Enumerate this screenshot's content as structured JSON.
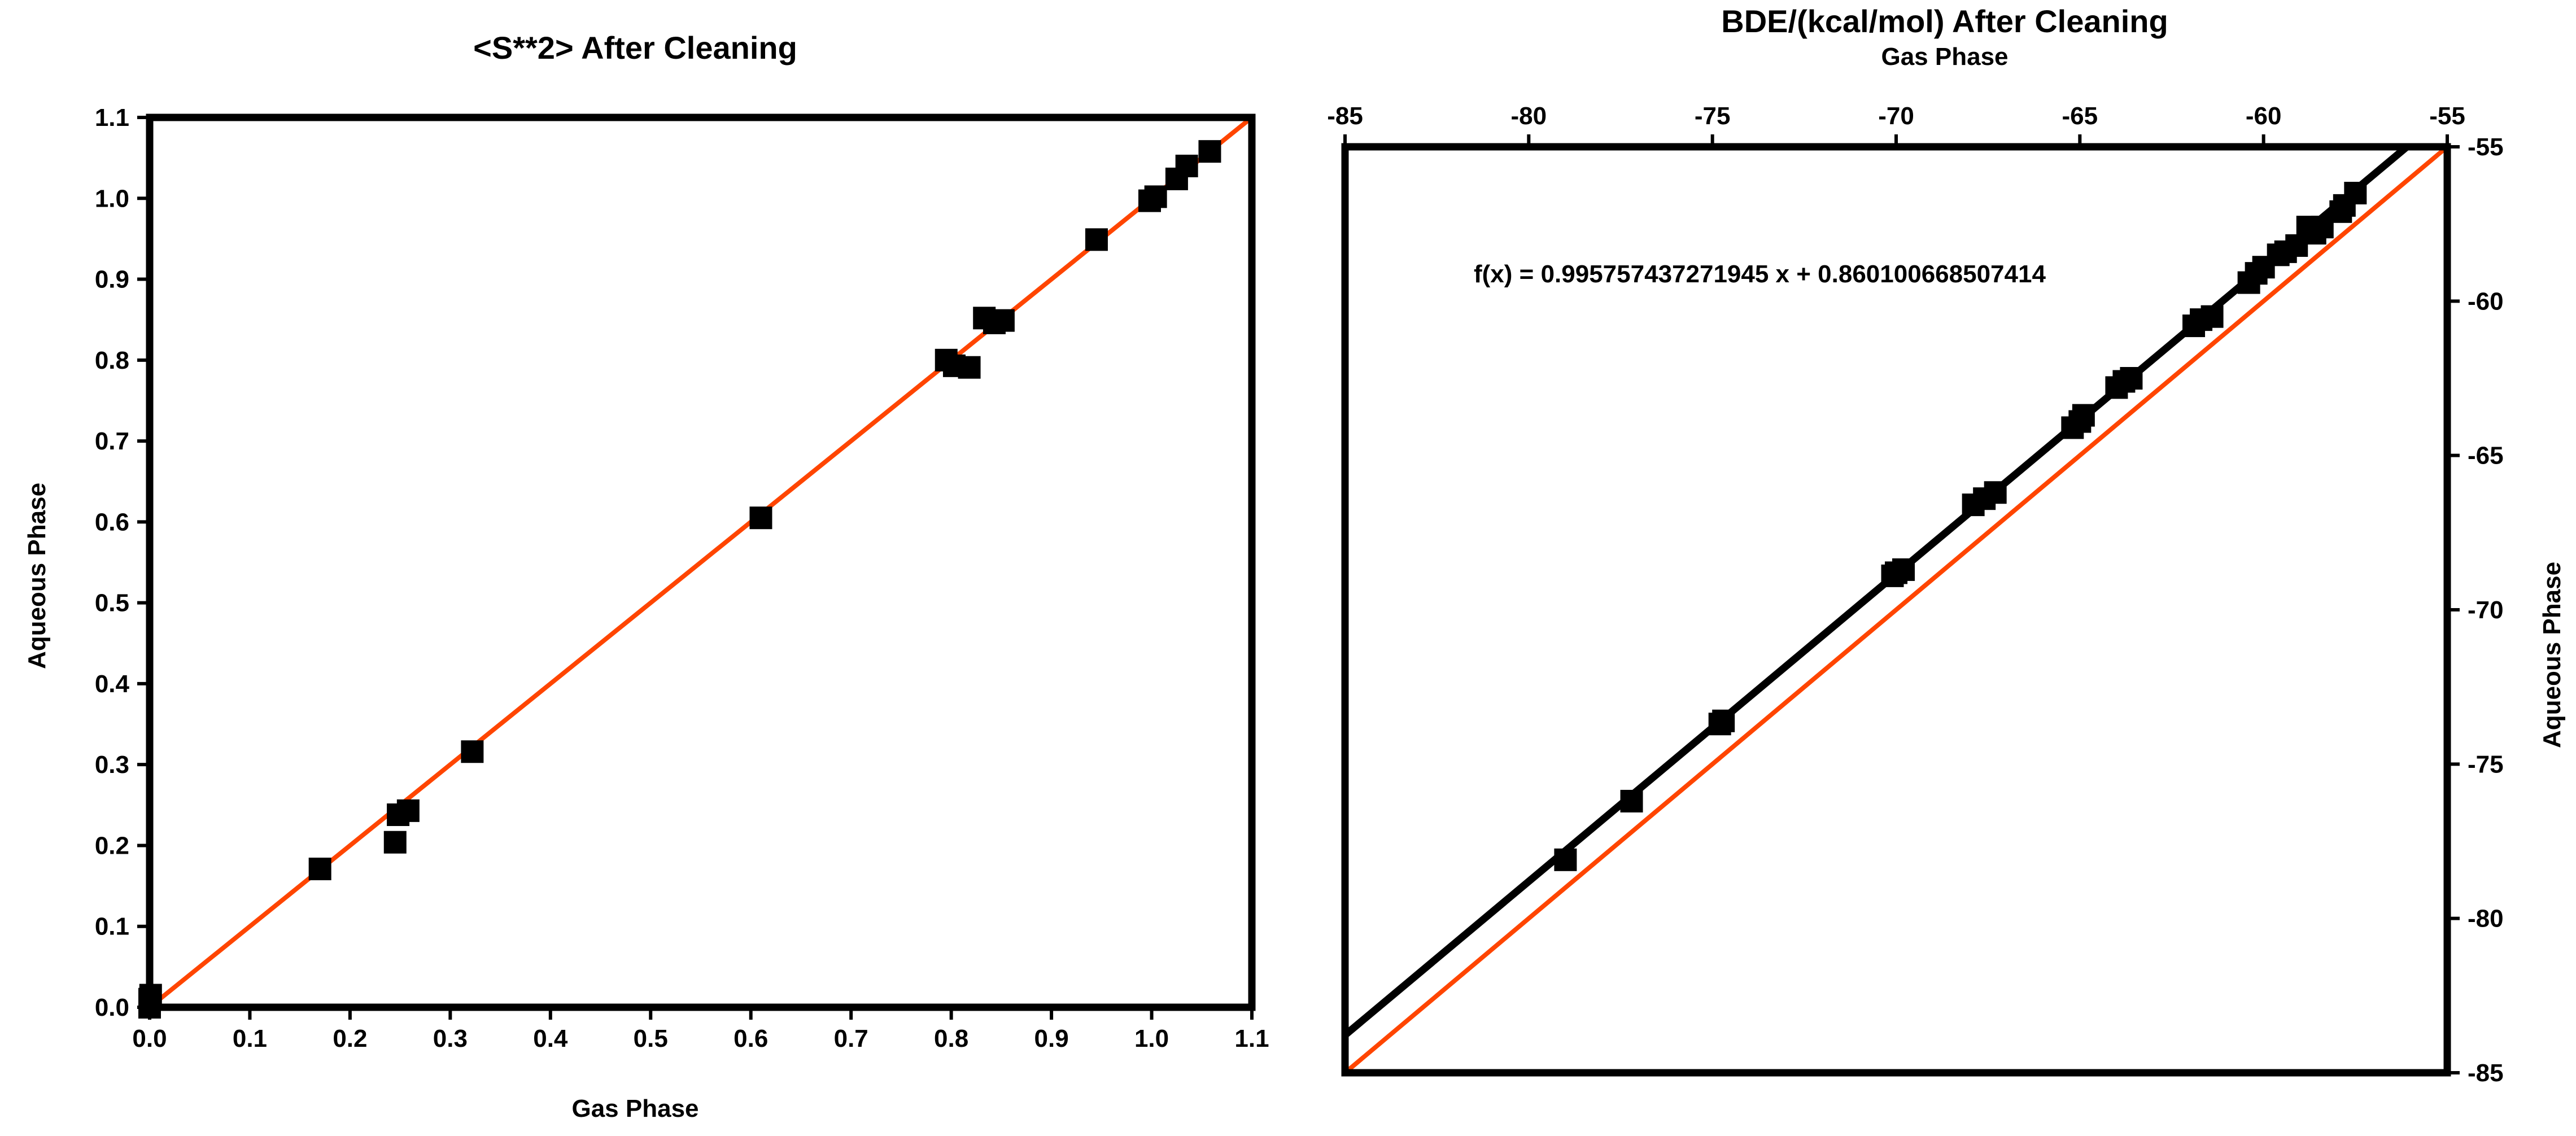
{
  "colors": {
    "ink": "#000000",
    "reference_line": "#ff4500",
    "background": "#ffffff"
  },
  "chart_data": [
    {
      "type": "scatter",
      "title": "<S**2> After Cleaning",
      "xlabel": "Gas Phase",
      "ylabel": "Aqueous Phase",
      "xlim": [
        0,
        1.1
      ],
      "ylim": [
        0,
        1.1
      ],
      "x_ticks": [
        0.0,
        0.1,
        0.2,
        0.3,
        0.4,
        0.5,
        0.6,
        0.7,
        0.8,
        0.9,
        1.0,
        1.1
      ],
      "y_ticks": [
        0.0,
        0.1,
        0.2,
        0.3,
        0.4,
        0.5,
        0.6,
        0.7,
        0.8,
        0.9,
        1.0,
        1.1
      ],
      "x_tick_labels": [
        "0.0",
        "0.1",
        "0.2",
        "0.3",
        "0.4",
        "0.5",
        "0.6",
        "0.7",
        "0.8",
        "0.9",
        "1.0",
        "1.1"
      ],
      "y_tick_labels": [
        "0.0",
        "0.1",
        "0.2",
        "0.3",
        "0.4",
        "0.5",
        "0.6",
        "0.7",
        "0.8",
        "0.9",
        "1.0",
        "1.1"
      ],
      "x_axis_position": "bottom",
      "y_axis_position": "left",
      "grid": false,
      "marker": "square",
      "reference_line": {
        "from": [
          0,
          0
        ],
        "to": [
          1.1,
          1.1
        ]
      },
      "points": [
        {
          "x": 0.0,
          "y": 0.0
        },
        {
          "x": 0.0,
          "y": 0.01
        },
        {
          "x": 0.001,
          "y": 0.015
        },
        {
          "x": 0.17,
          "y": 0.171
        },
        {
          "x": 0.245,
          "y": 0.204
        },
        {
          "x": 0.248,
          "y": 0.238
        },
        {
          "x": 0.258,
          "y": 0.243
        },
        {
          "x": 0.322,
          "y": 0.316
        },
        {
          "x": 0.61,
          "y": 0.605
        },
        {
          "x": 0.795,
          "y": 0.8
        },
        {
          "x": 0.803,
          "y": 0.793
        },
        {
          "x": 0.818,
          "y": 0.791
        },
        {
          "x": 0.833,
          "y": 0.852
        },
        {
          "x": 0.843,
          "y": 0.846
        },
        {
          "x": 0.852,
          "y": 0.849
        },
        {
          "x": 0.945,
          "y": 0.949
        },
        {
          "x": 0.998,
          "y": 0.997
        },
        {
          "x": 1.004,
          "y": 1.002
        },
        {
          "x": 1.025,
          "y": 1.024
        },
        {
          "x": 1.035,
          "y": 1.04
        },
        {
          "x": 1.058,
          "y": 1.058
        }
      ]
    },
    {
      "type": "scatter",
      "title": "BDE/(kcal/mol) After Cleaning",
      "xlabel": "Gas Phase",
      "ylabel": "Aqueous Phase",
      "xlim": [
        -85,
        -55
      ],
      "ylim": [
        -85,
        -55
      ],
      "x_ticks": [
        -85,
        -80,
        -75,
        -70,
        -65,
        -60,
        -55
      ],
      "y_ticks": [
        -85,
        -80,
        -75,
        -70,
        -65,
        -60,
        -55
      ],
      "x_tick_labels": [
        "-85",
        "-80",
        "-75",
        "-70",
        "-65",
        "-60",
        "-55"
      ],
      "y_tick_labels": [
        "-85",
        "-80",
        "-75",
        "-70",
        "-65",
        "-60",
        "-55"
      ],
      "x_axis_position": "top",
      "y_axis_position": "right",
      "grid": false,
      "marker": "square",
      "reference_line": {
        "from": [
          -85,
          -85
        ],
        "to": [
          -55,
          -55
        ]
      },
      "fit_line": {
        "slope": 0.995757437271945,
        "intercept": 0.860100668507414
      },
      "annotation": "f(x) = 0.995757437271945 x + 0.860100668507414",
      "points": [
        {
          "x": -79.0,
          "y": -78.1
        },
        {
          "x": -77.2,
          "y": -76.2
        },
        {
          "x": -74.7,
          "y": -73.6
        },
        {
          "x": -74.8,
          "y": -73.7
        },
        {
          "x": -70.0,
          "y": -68.8
        },
        {
          "x": -69.8,
          "y": -68.7
        },
        {
          "x": -70.1,
          "y": -68.9
        },
        {
          "x": -67.9,
          "y": -66.6
        },
        {
          "x": -67.6,
          "y": -66.4
        },
        {
          "x": -67.3,
          "y": -66.2
        },
        {
          "x": -65.2,
          "y": -64.1
        },
        {
          "x": -65.0,
          "y": -63.9
        },
        {
          "x": -64.9,
          "y": -63.7
        },
        {
          "x": -64.0,
          "y": -62.8
        },
        {
          "x": -63.8,
          "y": -62.6
        },
        {
          "x": -63.6,
          "y": -62.5
        },
        {
          "x": -61.9,
          "y": -60.8
        },
        {
          "x": -61.7,
          "y": -60.6
        },
        {
          "x": -61.4,
          "y": -60.5
        },
        {
          "x": -60.4,
          "y": -59.4
        },
        {
          "x": -60.2,
          "y": -59.1
        },
        {
          "x": -60.0,
          "y": -58.9
        },
        {
          "x": -59.6,
          "y": -58.5
        },
        {
          "x": -59.4,
          "y": -58.4
        },
        {
          "x": -59.1,
          "y": -58.2
        },
        {
          "x": -58.8,
          "y": -57.6
        },
        {
          "x": -58.6,
          "y": -57.8
        },
        {
          "x": -58.4,
          "y": -57.6
        },
        {
          "x": -57.9,
          "y": -57.1
        },
        {
          "x": -57.8,
          "y": -56.9
        },
        {
          "x": -57.5,
          "y": -56.5
        }
      ]
    }
  ]
}
